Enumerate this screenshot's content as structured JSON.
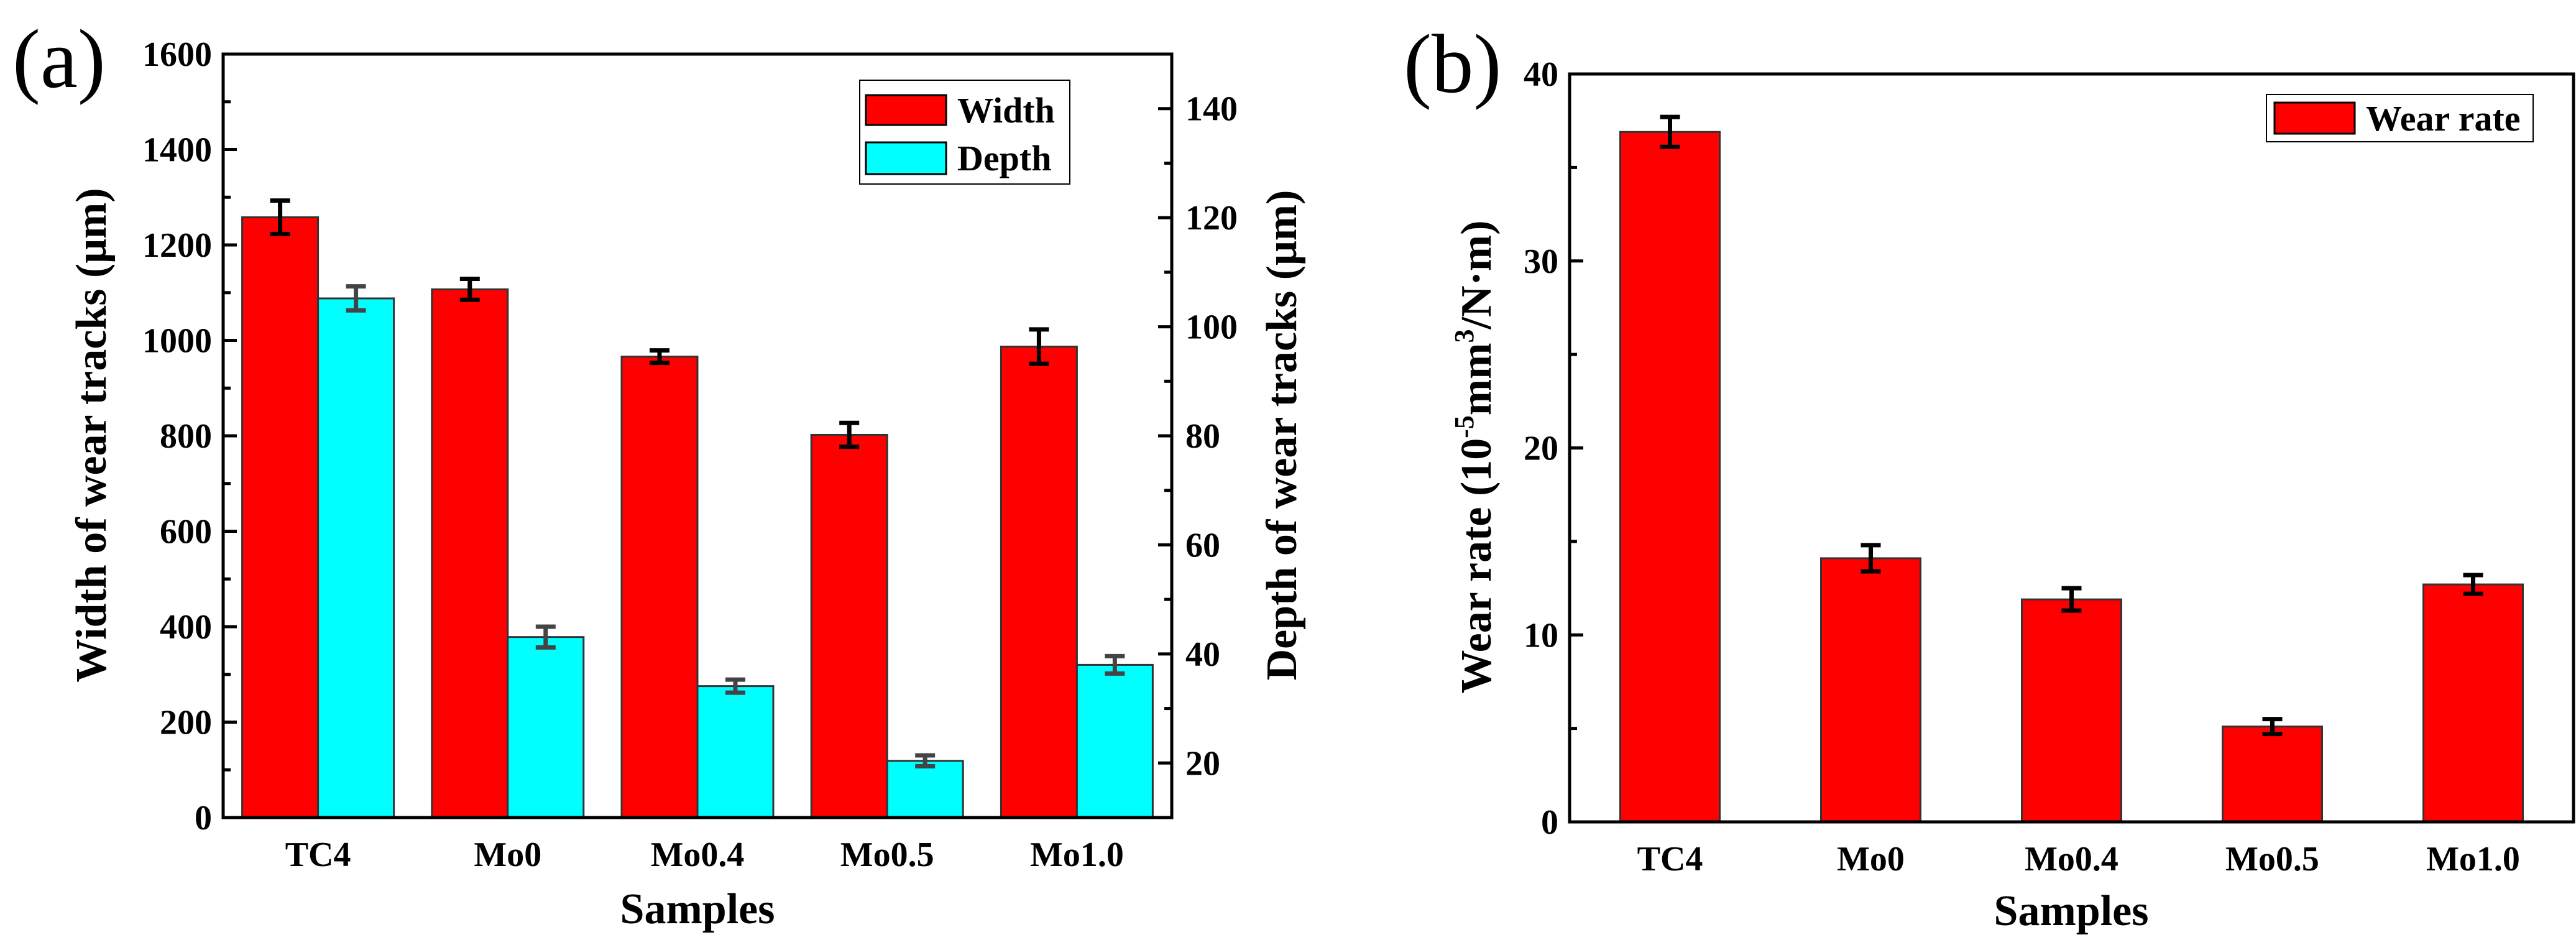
{
  "chart_data": [
    {
      "type": "bar",
      "panel_label": "(a)",
      "categories": [
        "TC4",
        "Mo0",
        "Mo0.4",
        "Mo0.5",
        "Mo1.0"
      ],
      "xlabel": "Samples",
      "ylabel": "Width of wear tracks (μm)",
      "ylabel_right": "Depth of wear tracks (μm)",
      "ylim": [
        0,
        1600
      ],
      "ylim_right": [
        10,
        150
      ],
      "yticks": [
        0,
        200,
        400,
        600,
        800,
        1000,
        1200,
        1400,
        1600
      ],
      "yticks_right": [
        20,
        40,
        60,
        80,
        100,
        120,
        140
      ],
      "legend_position": "top-right",
      "series": [
        {
          "name": "Width",
          "axis": "left",
          "color": "#ff0000",
          "values": [
            1258,
            1107,
            966,
            802,
            987
          ],
          "errors": [
            35,
            22,
            13,
            25,
            36
          ]
        },
        {
          "name": "Depth",
          "axis": "right",
          "color": "#00ffff",
          "values": [
            105.2,
            43.1,
            34.1,
            20.4,
            38.0
          ],
          "errors": [
            2.2,
            1.9,
            1.2,
            1.0,
            1.6
          ]
        }
      ]
    },
    {
      "type": "bar",
      "panel_label": "(b)",
      "categories": [
        "TC4",
        "Mo0",
        "Mo0.4",
        "Mo0.5",
        "Mo1.0"
      ],
      "xlabel": "Samples",
      "ylabel_parts": {
        "a": "Wear rate (10",
        "sup1": "-5",
        "b": "mm",
        "sup2": "3",
        "c": "/N·m)"
      },
      "ylim": [
        0,
        40
      ],
      "yticks": [
        0,
        10,
        20,
        30,
        40
      ],
      "legend_position": "top-right",
      "series": [
        {
          "name": "Wear rate",
          "axis": "left",
          "color": "#ff0000",
          "values": [
            36.9,
            14.1,
            11.9,
            5.1,
            12.7
          ],
          "errors": [
            0.8,
            0.7,
            0.6,
            0.4,
            0.5
          ]
        }
      ]
    }
  ]
}
